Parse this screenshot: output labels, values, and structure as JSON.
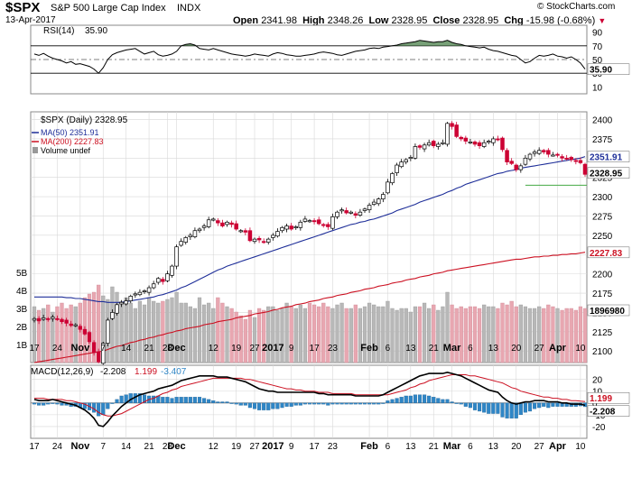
{
  "header": {
    "symbol": "$SPX",
    "name": "S&P 500 Large Cap Index",
    "exchange": "INDX",
    "date": "13-Apr-2017",
    "open_label": "Open",
    "open": "2341.98",
    "high_label": "High",
    "high": "2348.26",
    "low_label": "Low",
    "low": "2328.95",
    "close_label": "Close",
    "close": "2328.95",
    "chg_label": "Chg",
    "chg": "-15.98 (-0.68%)",
    "chg_arrow": "▼",
    "copyright": "© StockCharts.com"
  },
  "colors": {
    "up": "#000000",
    "down": "#cc0033",
    "ma50": "#1f2f99",
    "ma200": "#cc1122",
    "vol_up": "#b8b8b8",
    "vol_down": "#e8a7b1",
    "macd_hist": "#2f86c6",
    "rsi_fill": "#5f8f5f",
    "close_line": "#44aa44",
    "grid": "#d8d8d8"
  },
  "x_labels": [
    {
      "i": 0,
      "t": "17"
    },
    {
      "i": 5,
      "t": "24"
    },
    {
      "i": 10,
      "t": "Nov"
    },
    {
      "i": 15,
      "t": "7"
    },
    {
      "i": 20,
      "t": "14"
    },
    {
      "i": 25,
      "t": "21"
    },
    {
      "i": 29,
      "t": "28"
    },
    {
      "i": 31,
      "t": "Dec"
    },
    {
      "i": 39,
      "t": "12"
    },
    {
      "i": 44,
      "t": "19"
    },
    {
      "i": 48,
      "t": "27"
    },
    {
      "i": 52,
      "t": "2017"
    },
    {
      "i": 56,
      "t": "9"
    },
    {
      "i": 61,
      "t": "17"
    },
    {
      "i": 65,
      "t": "23"
    },
    {
      "i": 73,
      "t": "Feb"
    },
    {
      "i": 77,
      "t": "6"
    },
    {
      "i": 82,
      "t": "13"
    },
    {
      "i": 87,
      "t": "21"
    },
    {
      "i": 91,
      "t": "Mar"
    },
    {
      "i": 95,
      "t": "6"
    },
    {
      "i": 100,
      "t": "13"
    },
    {
      "i": 105,
      "t": "20"
    },
    {
      "i": 110,
      "t": "27"
    },
    {
      "i": 114,
      "t": "Apr"
    },
    {
      "i": 119,
      "t": "10"
    }
  ],
  "chart_data": [
    {
      "type": "line",
      "title": "RSI(14) 35.90",
      "legend": "RSI(14)",
      "last_value": "35.90",
      "ylim": [
        0,
        100
      ],
      "ticks": [
        "90",
        "70",
        "50",
        "30",
        "10"
      ],
      "overbought": 70,
      "oversold": 30,
      "values": [
        58,
        56,
        59,
        55,
        52,
        50,
        48,
        45,
        47,
        43,
        44,
        42,
        40,
        36,
        30,
        38,
        50,
        57,
        60,
        62,
        64,
        65,
        66,
        62,
        58,
        60,
        62,
        57,
        55,
        56,
        58,
        62,
        70,
        72,
        73,
        71,
        66,
        65,
        64,
        66,
        64,
        62,
        60,
        58,
        57,
        56,
        55,
        56,
        58,
        57,
        56,
        55,
        58,
        60,
        59,
        57,
        56,
        55,
        55,
        56,
        57,
        58,
        60,
        61,
        60,
        59,
        57,
        56,
        58,
        60,
        62,
        63,
        64,
        66,
        67,
        66,
        68,
        69,
        70,
        71,
        73,
        74,
        75,
        76,
        78,
        77,
        76,
        75,
        76,
        76,
        78,
        75,
        73,
        72,
        70,
        69,
        68,
        67,
        68,
        65,
        63,
        62,
        60,
        58,
        56,
        55,
        50,
        45,
        47,
        52,
        56,
        55,
        56,
        58,
        55,
        54,
        52,
        54,
        50,
        45,
        36
      ]
    },
    {
      "type": "candlestick",
      "legend": "$SPX (Daily) 2328.95",
      "ma50_label": "MA(50) 2351.91",
      "ma200_label": "MA(200) 2227.83",
      "volume_label": "Volume undef",
      "ylim": [
        2085,
        2410
      ],
      "y_ticks": [
        "2400",
        "2375",
        "2350",
        "2325",
        "2300",
        "2275",
        "2250",
        "2225",
        "2200",
        "2175",
        "2150",
        "2125",
        "2100"
      ],
      "vol_ticks": [
        "5B",
        "4B",
        "3B",
        "2B",
        "1B"
      ],
      "vol_max": 6,
      "badges": {
        "ma50": "2351.91",
        "close": "2328.95",
        "ma200": "2227.83",
        "volume": "1896980"
      },
      "close_level": 2328.95,
      "ma50_level": 2351.91,
      "ma200_level": 2227.83,
      "closes": [
        2142,
        2139,
        2143,
        2141,
        2144,
        2141,
        2138,
        2136,
        2133,
        2134,
        2128,
        2122,
        2112,
        2098,
        2086,
        2110,
        2140,
        2150,
        2160,
        2163,
        2165,
        2171,
        2174,
        2176,
        2178,
        2182,
        2187,
        2194,
        2190,
        2200,
        2210,
        2235,
        2242,
        2247,
        2250,
        2256,
        2258,
        2262,
        2270,
        2271,
        2266,
        2262,
        2267,
        2264,
        2258,
        2256,
        2254,
        2243,
        2245,
        2244,
        2241,
        2245,
        2250,
        2255,
        2260,
        2262,
        2258,
        2261,
        2267,
        2271,
        2269,
        2268,
        2265,
        2263,
        2261,
        2274,
        2280,
        2283,
        2279,
        2280,
        2276,
        2280,
        2284,
        2289,
        2293,
        2297,
        2303,
        2319,
        2330,
        2341,
        2345,
        2348,
        2351,
        2365,
        2364,
        2367,
        2370,
        2366,
        2368,
        2370,
        2395,
        2391,
        2378,
        2375,
        2372,
        2371,
        2368,
        2366,
        2370,
        2372,
        2375,
        2374,
        2361,
        2345,
        2343,
        2335,
        2340,
        2350,
        2355,
        2358,
        2360,
        2358,
        2355,
        2354,
        2354,
        2350,
        2349,
        2348,
        2346,
        2344,
        2329
      ],
      "volumes": [
        3.1,
        2.9,
        3.0,
        3.2,
        2.8,
        3.1,
        3.3,
        3.0,
        3.2,
        3.1,
        3.3,
        3.6,
        3.8,
        3.9,
        4.3,
        3.7,
        3.5,
        4.2,
        3.9,
        3.4,
        3.6,
        3.3,
        3.0,
        3.4,
        3.2,
        3.6,
        3.4,
        3.3,
        3.4,
        3.5,
        3.6,
        3.9,
        3.3,
        3.3,
        3.1,
        3.0,
        3.6,
        3.2,
        3.3,
        3.0,
        3.6,
        3.3,
        3.1,
        3.0,
        2.8,
        2.6,
        2.4,
        2.9,
        2.5,
        3.0,
        2.9,
        3.1,
        3.1,
        2.9,
        3.0,
        3.3,
        3.1,
        3.0,
        3.2,
        3.0,
        3.3,
        3.2,
        3.1,
        3.3,
        3.1,
        3.0,
        3.2,
        3.3,
        3.0,
        3.0,
        3.2,
        3.0,
        3.1,
        3.3,
        3.2,
        3.1,
        3.1,
        3.4,
        3.0,
        2.9,
        3.0,
        3.0,
        2.8,
        3.1,
        3.1,
        3.3,
        3.0,
        3.2,
        2.9,
        3.1,
        3.9,
        3.2,
        3.0,
        3.1,
        3.0,
        3.1,
        3.1,
        3.0,
        3.2,
        3.1,
        3.1,
        3.0,
        3.3,
        3.2,
        3.4,
        3.1,
        3.2,
        3.1,
        3.0,
        3.0,
        3.1,
        3.0,
        3.2,
        3.1,
        3.0,
        2.9,
        3.0,
        3.0,
        2.9,
        3.1,
        3.0
      ],
      "ma50": [
        2170,
        2170,
        2170,
        2170,
        2170,
        2170,
        2170,
        2169,
        2169,
        2168,
        2168,
        2167,
        2166,
        2165,
        2164,
        2164,
        2163,
        2163,
        2163,
        2163,
        2164,
        2165,
        2166,
        2167,
        2168,
        2169,
        2170,
        2172,
        2173,
        2175,
        2177,
        2179,
        2182,
        2184,
        2187,
        2190,
        2193,
        2196,
        2199,
        2202,
        2205,
        2207,
        2210,
        2212,
        2214,
        2216,
        2218,
        2220,
        2222,
        2224,
        2226,
        2228,
        2230,
        2232,
        2234,
        2236,
        2238,
        2240,
        2242,
        2244,
        2246,
        2248,
        2250,
        2252,
        2254,
        2256,
        2258,
        2260,
        2262,
        2264,
        2265,
        2267,
        2268,
        2270,
        2271,
        2273,
        2275,
        2277,
        2279,
        2282,
        2284,
        2286,
        2288,
        2290,
        2293,
        2295,
        2297,
        2299,
        2301,
        2303,
        2306,
        2308,
        2311,
        2313,
        2316,
        2318,
        2320,
        2322,
        2324,
        2326,
        2328,
        2330,
        2331,
        2333,
        2334,
        2335,
        2337,
        2338,
        2339,
        2340,
        2341,
        2342,
        2343,
        2344,
        2345,
        2346,
        2347,
        2348,
        2349,
        2350,
        2352
      ],
      "ma200": [
        2085,
        2086,
        2087,
        2088,
        2089,
        2090,
        2091,
        2092,
        2093,
        2094,
        2095,
        2096,
        2097,
        2098,
        2099,
        2100,
        2102,
        2104,
        2106,
        2107,
        2109,
        2111,
        2112,
        2114,
        2115,
        2117,
        2118,
        2120,
        2121,
        2123,
        2124,
        2126,
        2127,
        2129,
        2130,
        2131,
        2132,
        2134,
        2135,
        2136,
        2138,
        2139,
        2140,
        2141,
        2143,
        2144,
        2145,
        2146,
        2148,
        2149,
        2150,
        2151,
        2153,
        2154,
        2156,
        2157,
        2158,
        2160,
        2161,
        2162,
        2164,
        2165,
        2166,
        2168,
        2169,
        2170,
        2172,
        2173,
        2174,
        2176,
        2177,
        2178,
        2180,
        2181,
        2182,
        2184,
        2185,
        2186,
        2188,
        2189,
        2190,
        2192,
        2193,
        2194,
        2196,
        2197,
        2198,
        2200,
        2201,
        2202,
        2204,
        2205,
        2206,
        2207,
        2208,
        2209,
        2210,
        2211,
        2212,
        2213,
        2214,
        2215,
        2216,
        2217,
        2218,
        2219,
        2219,
        2220,
        2221,
        2222,
        2222,
        2223,
        2223,
        2224,
        2224,
        2225,
        2225,
        2226,
        2226,
        2227,
        2228
      ]
    },
    {
      "type": "line",
      "title": "MACD(12,26,9) -2.208, 1.199, -3.407",
      "legend_name": "MACD(12,26,9)",
      "legend_v1": "-2.208",
      "legend_v2": "1.199",
      "legend_v3": "-3.407",
      "ylim": [
        -30,
        32
      ],
      "ticks": [
        "20",
        "10",
        "0",
        "-10",
        "-20"
      ],
      "badges": {
        "signal": "1.199",
        "macd": "-2.208"
      },
      "macd": [
        3,
        2,
        2,
        2,
        3,
        2,
        1,
        0,
        -1,
        -2,
        -4,
        -6,
        -9,
        -13,
        -19,
        -20,
        -16,
        -11,
        -7,
        -3,
        0,
        3,
        5,
        7,
        8,
        9,
        10,
        12,
        13,
        14,
        15,
        17,
        19,
        20,
        21,
        22,
        23,
        23,
        23,
        23,
        22,
        22,
        22,
        21,
        20,
        19,
        18,
        16,
        14,
        12,
        11,
        10,
        10,
        9,
        9,
        9,
        9,
        9,
        9,
        9,
        9,
        9,
        8,
        8,
        7,
        7,
        7,
        7,
        7,
        7,
        6,
        6,
        6,
        6,
        6,
        6,
        7,
        9,
        11,
        13,
        15,
        17,
        19,
        21,
        23,
        24,
        25,
        25,
        25,
        25,
        26,
        25,
        24,
        23,
        21,
        19,
        17,
        15,
        13,
        11,
        10,
        9,
        5,
        2,
        0,
        -1,
        0,
        1,
        1,
        2,
        2,
        2,
        1,
        1,
        1,
        0,
        0,
        -1,
        -1,
        -1,
        -2
      ],
      "signal": [
        4,
        4,
        4,
        3,
        3,
        3,
        3,
        2,
        2,
        1,
        0,
        -1,
        -3,
        -5,
        -8,
        -10,
        -11,
        -11,
        -10,
        -9,
        -7,
        -5,
        -3,
        -1,
        1,
        3,
        4,
        6,
        8,
        9,
        11,
        12,
        14,
        15,
        16,
        17,
        18,
        19,
        20,
        21,
        21,
        21,
        21,
        21,
        21,
        21,
        20,
        20,
        19,
        18,
        17,
        16,
        15,
        14,
        13,
        12,
        12,
        11,
        11,
        10,
        10,
        10,
        9,
        9,
        9,
        8,
        8,
        8,
        8,
        8,
        7,
        7,
        7,
        7,
        7,
        7,
        7,
        7,
        8,
        9,
        10,
        11,
        13,
        14,
        16,
        17,
        19,
        20,
        21,
        22,
        23,
        24,
        24,
        24,
        24,
        23,
        23,
        22,
        21,
        20,
        19,
        18,
        17,
        15,
        13,
        12,
        10,
        9,
        8,
        7,
        6,
        5,
        5,
        4,
        4,
        3,
        3,
        2,
        2,
        1.5,
        1.2
      ]
    }
  ]
}
